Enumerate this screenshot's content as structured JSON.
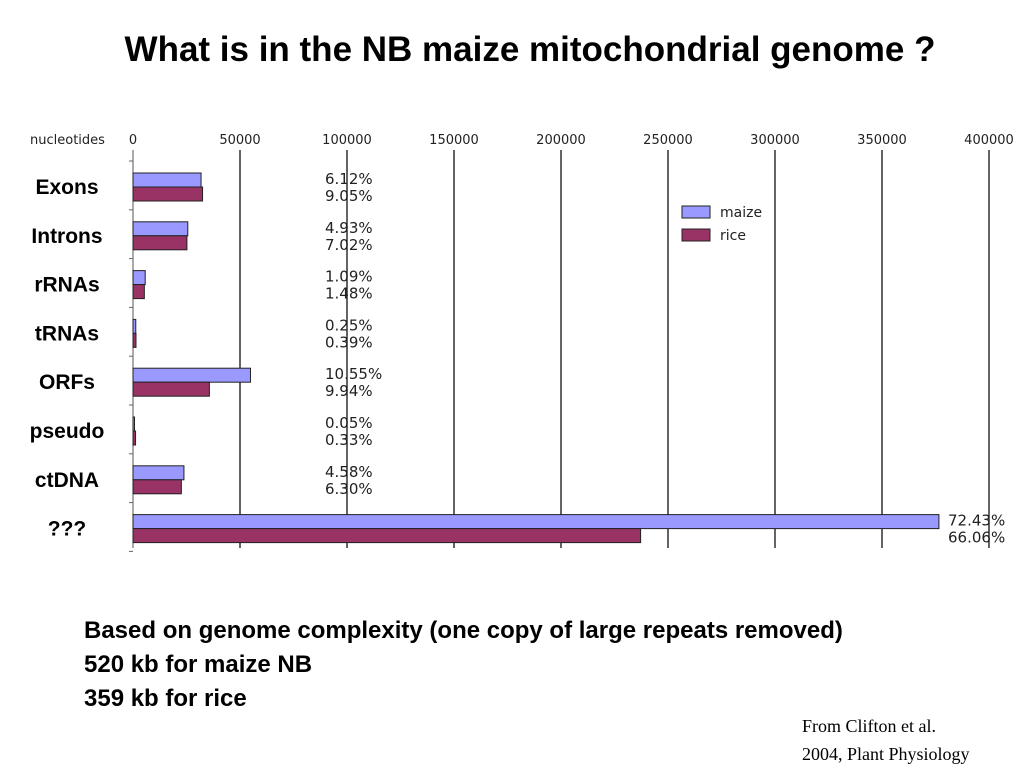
{
  "slide": {
    "title": "What is in the NB maize mitochondrial genome ?",
    "notes": [
      "Based on genome complexity (one copy of large repeats removed)",
      "520 kb for maize NB",
      "359 kb for rice"
    ],
    "citation": [
      "From Clifton et al.",
      "2004, Plant Physiology"
    ]
  },
  "chart_data": {
    "type": "bar",
    "orientation": "horizontal",
    "axis_unit_label": "nucleotides",
    "xlim": [
      0,
      400000
    ],
    "ticks": [
      0,
      50000,
      100000,
      150000,
      200000,
      250000,
      300000,
      350000,
      400000
    ],
    "tick_labels": [
      "0",
      "50000",
      "100000",
      "150000",
      "200000",
      "250000",
      "300000",
      "350000",
      "400000"
    ],
    "grid": "vertical",
    "legend_position": "top-right",
    "categories": [
      "Exons",
      "Introns",
      "rRNAs",
      "tRNAs",
      "ORFs",
      "pseudo",
      "ctDNA",
      "???"
    ],
    "series": [
      {
        "name": "maize",
        "color": "#9999ff",
        "values": [
          31800,
          25600,
          5700,
          1300,
          54900,
          260,
          23800,
          376600
        ],
        "labels": [
          "6.12%",
          "4.93%",
          "1.09%",
          "0.25%",
          "10.55%",
          "0.05%",
          "4.58%",
          "72.43%"
        ]
      },
      {
        "name": "rice",
        "color": "#993366",
        "values": [
          32500,
          25200,
          5300,
          1400,
          35700,
          1200,
          22600,
          237200
        ],
        "labels": [
          "9.05%",
          "7.02%",
          "1.48%",
          "0.39%",
          "9.94%",
          "0.33%",
          "6.30%",
          "66.06%"
        ]
      }
    ]
  }
}
